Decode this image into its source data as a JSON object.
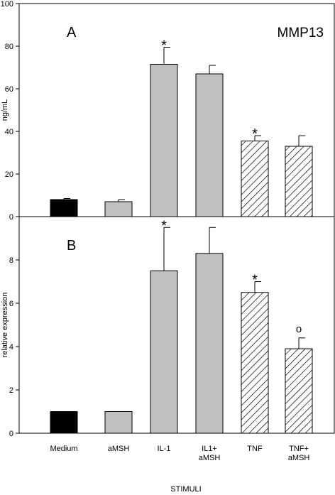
{
  "chart_data": [
    {
      "type": "bar",
      "panel_label": "A",
      "title": "MMP13",
      "ylabel": "ng/mL",
      "xlabel": "",
      "ylim": [
        0,
        100
      ],
      "yticks": [
        0,
        20,
        40,
        60,
        80,
        100
      ],
      "categories": [
        "Medium",
        "aMSH",
        "IL-1",
        "IL1+ aMSH",
        "TNF",
        "TNF+ aMSH"
      ],
      "values": [
        8,
        7,
        71.5,
        67,
        35.5,
        33
      ],
      "errors": [
        0.5,
        1,
        8,
        4,
        2.5,
        5
      ],
      "fills": [
        "solid-black",
        "gray",
        "gray",
        "gray",
        "hatched",
        "hatched"
      ],
      "markers": [
        "",
        "",
        "*",
        "",
        "*",
        ""
      ]
    },
    {
      "type": "bar",
      "panel_label": "B",
      "title": "",
      "ylabel": "relative expression",
      "xlabel": "STIMULI",
      "ylim": [
        0,
        10
      ],
      "yticks": [
        0,
        2,
        4,
        6,
        8
      ],
      "categories": [
        "Medium",
        "aMSH",
        "IL-1",
        "IL1+ aMSH",
        "TNF",
        "TNF+ aMSH"
      ],
      "values": [
        1,
        1,
        7.5,
        8.3,
        6.5,
        3.9
      ],
      "errors": [
        0,
        0,
        2,
        1.2,
        0.5,
        0.5
      ],
      "fills": [
        "solid-black",
        "gray",
        "gray",
        "gray",
        "hatched",
        "hatched"
      ],
      "markers": [
        "",
        "",
        "*",
        "",
        "*",
        "o"
      ]
    }
  ],
  "category_labels": [
    [
      "Medium"
    ],
    [
      "aMSH"
    ],
    [
      "IL-1"
    ],
    [
      "IL1+",
      "aMSH"
    ],
    [
      "TNF"
    ],
    [
      "TNF+",
      "aMSH"
    ]
  ],
  "colors": {
    "solid-black": "#000000",
    "gray": "#c0c0c0",
    "hatch_line": "#000000",
    "axis": "#000000"
  }
}
